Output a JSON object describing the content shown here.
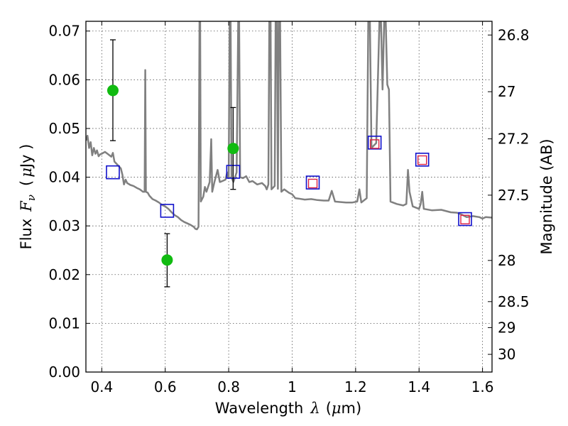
{
  "chart_data": {
    "type": "scatter",
    "xlabel_main": "Wavelength",
    "xlabel_symbol": "λ",
    "xlabel_unit_open": "(",
    "xlabel_unit_mu": "μ",
    "xlabel_unit_rest": "m)",
    "ylabel_main": "Flux",
    "ylabel_symbol": "F",
    "ylabel_sub": "ν",
    "ylabel_unit_open": "(",
    "ylabel_unit_mu": "μ",
    "ylabel_unit_rest": "Jy )",
    "y2label": "Magnitude (AB)",
    "xlim": [
      0.35,
      1.63
    ],
    "ylim": [
      0.0,
      0.072
    ],
    "grid": true,
    "xticks": [
      0.4,
      0.6,
      0.8,
      1.0,
      1.2,
      1.4,
      1.6
    ],
    "xtick_labels": [
      "0.4",
      "0.6",
      "0.8",
      "1",
      "1.2",
      "1.4",
      "1.6"
    ],
    "yticks": [
      0.0,
      0.01,
      0.02,
      0.03,
      0.04,
      0.05,
      0.06,
      0.07
    ],
    "ytick_labels": [
      "0.00",
      "0.01",
      "0.02",
      "0.03",
      "0.04",
      "0.05",
      "0.06",
      "0.07"
    ],
    "y2ticks": [
      26.8,
      27.0,
      27.2,
      27.5,
      28.0,
      28.5,
      29.0,
      30.0
    ],
    "y2tick_labels": [
      "26.8",
      "27",
      "27.2",
      "27.5",
      "28",
      "28.5",
      "29",
      "30"
    ],
    "colors": {
      "spectrum": "#808080",
      "observed": "#11bb11",
      "model": "#1111cc",
      "model_inner": "#dd2244",
      "errorbar": "#000000",
      "grid": "#555555"
    },
    "series": [
      {
        "kind": "observed_with_errors",
        "points": [
          {
            "x": 0.435,
            "y": 0.0578,
            "ylow": 0.0475,
            "yhigh": 0.0682
          },
          {
            "x": 0.606,
            "y": 0.023,
            "ylow": 0.0175,
            "yhigh": 0.0284
          },
          {
            "x": 0.814,
            "y": 0.0459,
            "ylow": 0.0375,
            "yhigh": 0.0543
          }
        ]
      },
      {
        "kind": "model_photometry",
        "points": [
          {
            "x": 0.435,
            "y": 0.041
          },
          {
            "x": 0.606,
            "y": 0.0331
          },
          {
            "x": 0.814,
            "y": 0.0411
          },
          {
            "x": 1.065,
            "y": 0.0389
          },
          {
            "x": 1.26,
            "y": 0.0471
          },
          {
            "x": 1.41,
            "y": 0.0436
          },
          {
            "x": 1.545,
            "y": 0.0314
          }
        ]
      },
      {
        "kind": "model_photometry_inner",
        "points": [
          {
            "x": 1.065,
            "y": 0.0387
          },
          {
            "x": 1.26,
            "y": 0.0468
          },
          {
            "x": 1.41,
            "y": 0.0435
          },
          {
            "x": 1.545,
            "y": 0.0313
          }
        ]
      },
      {
        "kind": "spectrum",
        "points": [
          [
            0.35,
            0.0475
          ],
          [
            0.355,
            0.0485
          ],
          [
            0.36,
            0.046
          ],
          [
            0.365,
            0.0472
          ],
          [
            0.37,
            0.0445
          ],
          [
            0.375,
            0.046
          ],
          [
            0.38,
            0.0448
          ],
          [
            0.385,
            0.0455
          ],
          [
            0.39,
            0.0443
          ],
          [
            0.395,
            0.0447
          ],
          [
            0.4,
            0.0448
          ],
          [
            0.41,
            0.0452
          ],
          [
            0.42,
            0.0447
          ],
          [
            0.43,
            0.0442
          ],
          [
            0.435,
            0.045
          ],
          [
            0.44,
            0.0432
          ],
          [
            0.45,
            0.0425
          ],
          [
            0.46,
            0.0418
          ],
          [
            0.465,
            0.0405
          ],
          [
            0.47,
            0.0385
          ],
          [
            0.475,
            0.0395
          ],
          [
            0.48,
            0.0388
          ],
          [
            0.49,
            0.0384
          ],
          [
            0.5,
            0.0382
          ],
          [
            0.51,
            0.0378
          ],
          [
            0.52,
            0.0375
          ],
          [
            0.53,
            0.037
          ],
          [
            0.535,
            0.037
          ],
          [
            0.537,
            0.062
          ],
          [
            0.539,
            0.037
          ],
          [
            0.545,
            0.0368
          ],
          [
            0.55,
            0.0362
          ],
          [
            0.56,
            0.0355
          ],
          [
            0.57,
            0.0352
          ],
          [
            0.58,
            0.0348
          ],
          [
            0.59,
            0.0343
          ],
          [
            0.6,
            0.034
          ],
          [
            0.61,
            0.0335
          ],
          [
            0.62,
            0.0328
          ],
          [
            0.63,
            0.0322
          ],
          [
            0.64,
            0.0318
          ],
          [
            0.65,
            0.0312
          ],
          [
            0.66,
            0.0308
          ],
          [
            0.67,
            0.0305
          ],
          [
            0.68,
            0.0302
          ],
          [
            0.69,
            0.0298
          ],
          [
            0.695,
            0.0294
          ],
          [
            0.7,
            0.0293
          ],
          [
            0.705,
            0.0298
          ],
          [
            0.708,
            0.072
          ],
          [
            0.71,
            0.072
          ],
          [
            0.712,
            0.035
          ],
          [
            0.72,
            0.036
          ],
          [
            0.725,
            0.038
          ],
          [
            0.73,
            0.037
          ],
          [
            0.74,
            0.039
          ],
          [
            0.745,
            0.0478
          ],
          [
            0.748,
            0.037
          ],
          [
            0.755,
            0.039
          ],
          [
            0.765,
            0.0415
          ],
          [
            0.772,
            0.039
          ],
          [
            0.78,
            0.0392
          ],
          [
            0.79,
            0.0395
          ],
          [
            0.795,
            0.041
          ],
          [
            0.8,
            0.0398
          ],
          [
            0.803,
            0.072
          ],
          [
            0.806,
            0.072
          ],
          [
            0.809,
            0.04
          ],
          [
            0.815,
            0.039
          ],
          [
            0.825,
            0.041
          ],
          [
            0.83,
            0.072
          ],
          [
            0.833,
            0.072
          ],
          [
            0.836,
            0.04
          ],
          [
            0.845,
            0.0398
          ],
          [
            0.855,
            0.0402
          ],
          [
            0.865,
            0.039
          ],
          [
            0.875,
            0.0392
          ],
          [
            0.89,
            0.0385
          ],
          [
            0.905,
            0.0388
          ],
          [
            0.915,
            0.0382
          ],
          [
            0.92,
            0.0375
          ],
          [
            0.925,
            0.0385
          ],
          [
            0.928,
            0.072
          ],
          [
            0.932,
            0.072
          ],
          [
            0.935,
            0.0375
          ],
          [
            0.945,
            0.0382
          ],
          [
            0.948,
            0.072
          ],
          [
            0.952,
            0.072
          ],
          [
            0.955,
            0.0376
          ],
          [
            0.958,
            0.072
          ],
          [
            0.962,
            0.072
          ],
          [
            0.966,
            0.037
          ],
          [
            0.975,
            0.0375
          ],
          [
            0.99,
            0.0368
          ],
          [
            1.0,
            0.0365
          ],
          [
            1.01,
            0.0357
          ],
          [
            1.02,
            0.0356
          ],
          [
            1.04,
            0.0354
          ],
          [
            1.06,
            0.0355
          ],
          [
            1.08,
            0.0353
          ],
          [
            1.1,
            0.0352
          ],
          [
            1.115,
            0.0352
          ],
          [
            1.125,
            0.0372
          ],
          [
            1.135,
            0.035
          ],
          [
            1.15,
            0.0349
          ],
          [
            1.17,
            0.0348
          ],
          [
            1.19,
            0.0348
          ],
          [
            1.205,
            0.035
          ],
          [
            1.212,
            0.0375
          ],
          [
            1.218,
            0.0348
          ],
          [
            1.235,
            0.0357
          ],
          [
            1.24,
            0.072
          ],
          [
            1.245,
            0.072
          ],
          [
            1.25,
            0.046
          ],
          [
            1.265,
            0.047
          ],
          [
            1.275,
            0.072
          ],
          [
            1.28,
            0.072
          ],
          [
            1.285,
            0.058
          ],
          [
            1.29,
            0.072
          ],
          [
            1.295,
            0.072
          ],
          [
            1.3,
            0.059
          ],
          [
            1.305,
            0.058
          ],
          [
            1.31,
            0.035
          ],
          [
            1.33,
            0.0345
          ],
          [
            1.35,
            0.0342
          ],
          [
            1.36,
            0.0345
          ],
          [
            1.365,
            0.0415
          ],
          [
            1.37,
            0.037
          ],
          [
            1.38,
            0.034
          ],
          [
            1.4,
            0.0335
          ],
          [
            1.405,
            0.0345
          ],
          [
            1.41,
            0.037
          ],
          [
            1.415,
            0.0335
          ],
          [
            1.44,
            0.0332
          ],
          [
            1.47,
            0.0333
          ],
          [
            1.5,
            0.0328
          ],
          [
            1.52,
            0.0327
          ],
          [
            1.535,
            0.0323
          ],
          [
            1.55,
            0.0318
          ],
          [
            1.57,
            0.032
          ],
          [
            1.59,
            0.0318
          ],
          [
            1.6,
            0.0315
          ],
          [
            1.61,
            0.0318
          ],
          [
            1.63,
            0.0317
          ]
        ]
      }
    ]
  }
}
